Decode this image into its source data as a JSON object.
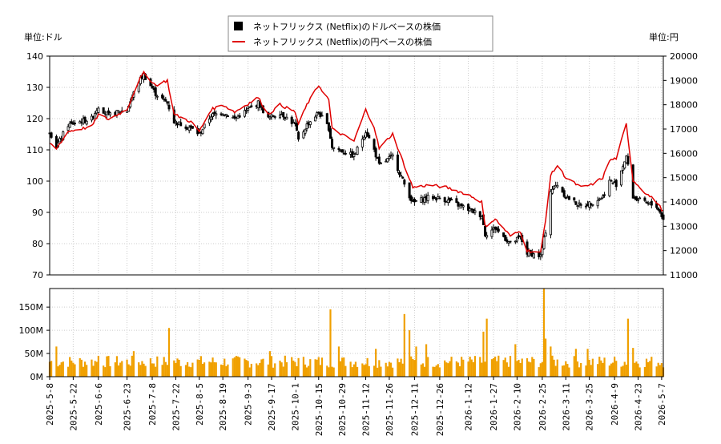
{
  "chart_data": [
    {
      "type": "candlestick+line",
      "legend": [
        {
          "label": "ネットフリックス (Netflix)のドルベースの株価",
          "color": "#000000",
          "marker": "square"
        },
        {
          "label": "ネットフリックス (Netflix)の円ベースの株価",
          "color": "#e00000",
          "marker": "line"
        }
      ],
      "left_axis": {
        "unit_label": "単位:ドル",
        "range": [
          70,
          140
        ],
        "ticks": [
          70,
          80,
          90,
          100,
          110,
          120,
          130,
          140
        ]
      },
      "right_axis": {
        "unit_label": "単位:円",
        "range": [
          11000,
          20000
        ],
        "ticks": [
          11000,
          12000,
          13000,
          14000,
          15000,
          16000,
          17000,
          18000,
          19000,
          20000
        ]
      },
      "grid": true,
      "date_range": [
        "2025-05-08",
        "2026-05-08"
      ],
      "usd_close_anchors": [
        {
          "x": "2025-05-08",
          "y": 116
        },
        {
          "x": "2025-05-12",
          "y": 111
        },
        {
          "x": "2025-05-19",
          "y": 118
        },
        {
          "x": "2025-06-02",
          "y": 120
        },
        {
          "x": "2025-06-06",
          "y": 124
        },
        {
          "x": "2025-06-12",
          "y": 121
        },
        {
          "x": "2025-06-23",
          "y": 123
        },
        {
          "x": "2025-06-30",
          "y": 132
        },
        {
          "x": "2025-07-03",
          "y": 134
        },
        {
          "x": "2025-07-10",
          "y": 128
        },
        {
          "x": "2025-07-17",
          "y": 125
        },
        {
          "x": "2025-07-21",
          "y": 119
        },
        {
          "x": "2025-07-31",
          "y": 117
        },
        {
          "x": "2025-08-05",
          "y": 115
        },
        {
          "x": "2025-08-12",
          "y": 121
        },
        {
          "x": "2025-08-19",
          "y": 122
        },
        {
          "x": "2025-08-26",
          "y": 120
        },
        {
          "x": "2025-09-09",
          "y": 125
        },
        {
          "x": "2025-09-15",
          "y": 120
        },
        {
          "x": "2025-09-22",
          "y": 122
        },
        {
          "x": "2025-10-01",
          "y": 118
        },
        {
          "x": "2025-10-03",
          "y": 113
        },
        {
          "x": "2025-10-08",
          "y": 118
        },
        {
          "x": "2025-10-15",
          "y": 122
        },
        {
          "x": "2025-10-21",
          "y": 117
        },
        {
          "x": "2025-10-23",
          "y": 111
        },
        {
          "x": "2025-11-05",
          "y": 108
        },
        {
          "x": "2025-11-12",
          "y": 116
        },
        {
          "x": "2025-11-17",
          "y": 110
        },
        {
          "x": "2025-11-20",
          "y": 105
        },
        {
          "x": "2025-11-28",
          "y": 108
        },
        {
          "x": "2025-12-05",
          "y": 99
        },
        {
          "x": "2025-12-10",
          "y": 93
        },
        {
          "x": "2025-12-20",
          "y": 95
        },
        {
          "x": "2025-12-30",
          "y": 94
        },
        {
          "x": "2026-01-12",
          "y": 91
        },
        {
          "x": "2026-01-20",
          "y": 89
        },
        {
          "x": "2026-01-22",
          "y": 83
        },
        {
          "x": "2026-01-28",
          "y": 85
        },
        {
          "x": "2026-02-06",
          "y": 80
        },
        {
          "x": "2026-02-12",
          "y": 82
        },
        {
          "x": "2026-02-16",
          "y": 77
        },
        {
          "x": "2026-02-24",
          "y": 76
        },
        {
          "x": "2026-02-27",
          "y": 84
        },
        {
          "x": "2026-03-02",
          "y": 97
        },
        {
          "x": "2026-03-06",
          "y": 99
        },
        {
          "x": "2026-03-11",
          "y": 95
        },
        {
          "x": "2026-03-20",
          "y": 92
        },
        {
          "x": "2026-03-26",
          "y": 93
        },
        {
          "x": "2026-04-02",
          "y": 95
        },
        {
          "x": "2026-04-06",
          "y": 100
        },
        {
          "x": "2026-04-10",
          "y": 99
        },
        {
          "x": "2026-04-16",
          "y": 108
        },
        {
          "x": "2026-04-20",
          "y": 95
        },
        {
          "x": "2026-04-27",
          "y": 93
        },
        {
          "x": "2026-05-04",
          "y": 92
        },
        {
          "x": "2026-05-08",
          "y": 88
        }
      ],
      "jpy_line_anchors": [
        {
          "x": "2025-05-08",
          "y": 16400
        },
        {
          "x": "2025-05-12",
          "y": 16200
        },
        {
          "x": "2025-05-19",
          "y": 16900
        },
        {
          "x": "2025-06-02",
          "y": 17100
        },
        {
          "x": "2025-06-06",
          "y": 17600
        },
        {
          "x": "2025-06-12",
          "y": 17400
        },
        {
          "x": "2025-06-23",
          "y": 17800
        },
        {
          "x": "2025-06-30",
          "y": 19000
        },
        {
          "x": "2025-07-03",
          "y": 19300
        },
        {
          "x": "2025-07-10",
          "y": 18800
        },
        {
          "x": "2025-07-17",
          "y": 19000
        },
        {
          "x": "2025-07-21",
          "y": 17600
        },
        {
          "x": "2025-07-31",
          "y": 17300
        },
        {
          "x": "2025-08-05",
          "y": 16900
        },
        {
          "x": "2025-08-12",
          "y": 17800
        },
        {
          "x": "2025-08-19",
          "y": 18000
        },
        {
          "x": "2025-08-26",
          "y": 17700
        },
        {
          "x": "2025-09-09",
          "y": 18300
        },
        {
          "x": "2025-09-15",
          "y": 17600
        },
        {
          "x": "2025-09-22",
          "y": 18000
        },
        {
          "x": "2025-10-01",
          "y": 17700
        },
        {
          "x": "2025-10-03",
          "y": 17200
        },
        {
          "x": "2025-10-08",
          "y": 18000
        },
        {
          "x": "2025-10-15",
          "y": 18800
        },
        {
          "x": "2025-10-21",
          "y": 18200
        },
        {
          "x": "2025-10-23",
          "y": 17000
        },
        {
          "x": "2025-11-05",
          "y": 16500
        },
        {
          "x": "2025-11-12",
          "y": 17800
        },
        {
          "x": "2025-11-17",
          "y": 17100
        },
        {
          "x": "2025-11-20",
          "y": 16200
        },
        {
          "x": "2025-11-28",
          "y": 16800
        },
        {
          "x": "2025-12-05",
          "y": 15500
        },
        {
          "x": "2025-12-10",
          "y": 14600
        },
        {
          "x": "2025-12-20",
          "y": 14700
        },
        {
          "x": "2025-12-30",
          "y": 14600
        },
        {
          "x": "2026-01-12",
          "y": 14300
        },
        {
          "x": "2026-01-20",
          "y": 14000
        },
        {
          "x": "2026-01-22",
          "y": 13000
        },
        {
          "x": "2026-01-28",
          "y": 13300
        },
        {
          "x": "2026-02-06",
          "y": 12600
        },
        {
          "x": "2026-02-12",
          "y": 12800
        },
        {
          "x": "2026-02-16",
          "y": 12000
        },
        {
          "x": "2026-02-24",
          "y": 11900
        },
        {
          "x": "2026-02-27",
          "y": 13300
        },
        {
          "x": "2026-03-02",
          "y": 15100
        },
        {
          "x": "2026-03-06",
          "y": 15500
        },
        {
          "x": "2026-03-11",
          "y": 15000
        },
        {
          "x": "2026-03-20",
          "y": 14600
        },
        {
          "x": "2026-03-26",
          "y": 14700
        },
        {
          "x": "2026-04-02",
          "y": 15000
        },
        {
          "x": "2026-04-06",
          "y": 15700
        },
        {
          "x": "2026-04-10",
          "y": 15800
        },
        {
          "x": "2026-04-16",
          "y": 17200
        },
        {
          "x": "2026-04-20",
          "y": 14900
        },
        {
          "x": "2026-04-27",
          "y": 14400
        },
        {
          "x": "2026-05-04",
          "y": 14000
        },
        {
          "x": "2026-05-08",
          "y": 13600
        }
      ],
      "volume": {
        "axis_ticks": [
          "0M",
          "50M",
          "100M",
          "150M"
        ],
        "range": [
          0,
          190
        ],
        "unit": "M",
        "baseline": 35,
        "spikes": [
          {
            "x": "2025-05-12",
            "y": 65
          },
          {
            "x": "2025-06-06",
            "y": 45
          },
          {
            "x": "2025-06-27",
            "y": 55
          },
          {
            "x": "2025-07-18",
            "y": 105
          },
          {
            "x": "2025-09-16",
            "y": 55
          },
          {
            "x": "2025-10-22",
            "y": 145
          },
          {
            "x": "2025-10-27",
            "y": 65
          },
          {
            "x": "2025-11-18",
            "y": 60
          },
          {
            "x": "2025-12-05",
            "y": 135
          },
          {
            "x": "2025-12-08",
            "y": 100
          },
          {
            "x": "2025-12-12",
            "y": 65
          },
          {
            "x": "2025-12-18",
            "y": 70
          },
          {
            "x": "2026-01-21",
            "y": 97
          },
          {
            "x": "2026-01-23",
            "y": 125
          },
          {
            "x": "2026-02-09",
            "y": 70
          },
          {
            "x": "2026-02-26",
            "y": 190
          },
          {
            "x": "2026-02-27",
            "y": 82
          },
          {
            "x": "2026-03-02",
            "y": 65
          },
          {
            "x": "2026-03-17",
            "y": 60
          },
          {
            "x": "2026-03-24",
            "y": 60
          },
          {
            "x": "2026-04-17",
            "y": 125
          },
          {
            "x": "2026-04-20",
            "y": 62
          }
        ]
      },
      "x_tick_labels": [
        "2025-5-8",
        "2025-5-22",
        "2025-6-6",
        "2025-6-23",
        "2025-7-8",
        "2025-7-22",
        "2025-8-5",
        "2025-8-19",
        "2025-9-3",
        "2025-9-17",
        "2025-10-1",
        "2025-10-15",
        "2025-10-29",
        "2025-11-12",
        "2025-11-26",
        "2025-12-11",
        "2025-12-26",
        "2026-1-12",
        "2026-1-27",
        "2026-2-10",
        "2026-2-25",
        "2026-3-11",
        "2026-3-25",
        "2026-4-9",
        "2026-4-23",
        "2026-5-7"
      ],
      "colors": {
        "candle": "#000000",
        "jpy_line": "#e00000",
        "volume_bar": "#f0a000",
        "grid": "#cccccc"
      }
    }
  ]
}
